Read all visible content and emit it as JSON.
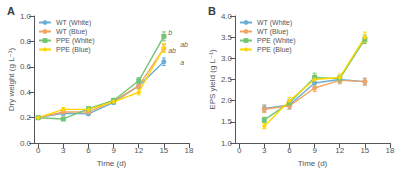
{
  "chart_data": [
    {
      "type": "line",
      "title": "A",
      "xlabel": "Time (d)",
      "ylabel": "Dry weight (g L⁻¹)",
      "xlim": [
        -0.5,
        18
      ],
      "ylim": [
        0.0,
        1.0
      ],
      "xticks": [
        0,
        3,
        6,
        9,
        12,
        15,
        18
      ],
      "yticks": [
        {
          "value": 0.0,
          "label": "0.0"
        },
        0.2,
        0.4,
        0.6,
        0.8,
        {
          "value": 1.0,
          "label": "1.0"
        }
      ],
      "grid": false,
      "legend": "upper left",
      "series": [
        {
          "name": "WT (White)",
          "color": "#6baed6",
          "marker": "circle",
          "x": [
            0,
            3,
            6,
            9,
            12,
            15
          ],
          "values": [
            0.2,
            0.235,
            0.23,
            0.32,
            0.45,
            0.64
          ],
          "yerr": [
            0.005,
            0.015,
            0.012,
            0.015,
            0.02,
            0.03
          ]
        },
        {
          "name": "WT (Blue)",
          "color": "#f4a460",
          "marker": "circle",
          "x": [
            0,
            3,
            6,
            9,
            12,
            15
          ],
          "values": [
            0.2,
            0.245,
            0.245,
            0.33,
            0.45,
            0.745
          ],
          "yerr": [
            0.005,
            0.015,
            0.012,
            0.015,
            0.02,
            0.03
          ]
        },
        {
          "name": "PPE (White)",
          "color": "#74c476",
          "marker": "square",
          "x": [
            0,
            3,
            6,
            9,
            12,
            15
          ],
          "values": [
            0.2,
            0.19,
            0.27,
            0.335,
            0.49,
            0.84
          ],
          "yerr": [
            0.005,
            0.012,
            0.015,
            0.018,
            0.025,
            0.035
          ]
        },
        {
          "name": "PPE (Blue)",
          "color": "#ffd700",
          "marker": "diamond",
          "x": [
            0,
            3,
            6,
            9,
            12,
            15
          ],
          "values": [
            0.2,
            0.265,
            0.265,
            0.325,
            0.4,
            0.75
          ],
          "yerr": [
            0.005,
            0.015,
            0.015,
            0.015,
            0.02,
            0.035
          ]
        }
      ],
      "annotations": [
        {
          "text": "b",
          "x": 15.4,
          "y": 0.87
        },
        {
          "text": "ab",
          "x": 15.4,
          "y": 0.775
        },
        {
          "text": "ab",
          "x": 15.4,
          "y": 0.73
        },
        {
          "text": "a",
          "x": 15.4,
          "y": 0.635
        }
      ]
    },
    {
      "type": "line",
      "title": "B",
      "xlabel": "Time (d)",
      "ylabel": "EPS yield (g L⁻¹)",
      "xlim": [
        -0.5,
        18
      ],
      "ylim": [
        1.0,
        4.0
      ],
      "xticks": [
        0,
        3,
        6,
        9,
        12,
        15,
        18
      ],
      "yticks": [
        {
          "value": 1.0,
          "label": "1.0"
        },
        1.5,
        {
          "value": 2.0,
          "label": "2.0"
        },
        2.5,
        {
          "value": 3.0,
          "label": "3.0"
        },
        3.5,
        {
          "value": 4.0,
          "label": "4.0"
        }
      ],
      "grid": false,
      "legend": "upper left",
      "series": [
        {
          "name": "WT (White)",
          "color": "#6baed6",
          "marker": "circle",
          "x": [
            3,
            6,
            9,
            12,
            15
          ],
          "values": [
            1.82,
            1.9,
            2.42,
            2.5,
            2.45
          ],
          "yerr": [
            0.08,
            0.08,
            0.08,
            0.08,
            0.08
          ]
        },
        {
          "name": "WT (Blue)",
          "color": "#f4a460",
          "marker": "circle",
          "x": [
            3,
            6,
            9,
            12,
            15
          ],
          "values": [
            1.8,
            1.88,
            2.3,
            2.48,
            2.45
          ],
          "yerr": [
            0.08,
            0.08,
            0.08,
            0.08,
            0.08
          ]
        },
        {
          "name": "PPE (White)",
          "color": "#74c476",
          "marker": "square",
          "x": [
            3,
            6,
            9,
            12,
            15
          ],
          "values": [
            1.55,
            1.95,
            2.55,
            2.52,
            3.45
          ],
          "yerr": [
            0.06,
            0.08,
            0.1,
            0.08,
            0.1
          ]
        },
        {
          "name": "PPE (Blue)",
          "color": "#ffd700",
          "marker": "diamond",
          "x": [
            3,
            6,
            9,
            12,
            15
          ],
          "values": [
            1.4,
            2.0,
            2.5,
            2.55,
            3.5
          ],
          "yerr": [
            0.06,
            0.08,
            0.1,
            0.08,
            0.12
          ]
        }
      ]
    }
  ]
}
